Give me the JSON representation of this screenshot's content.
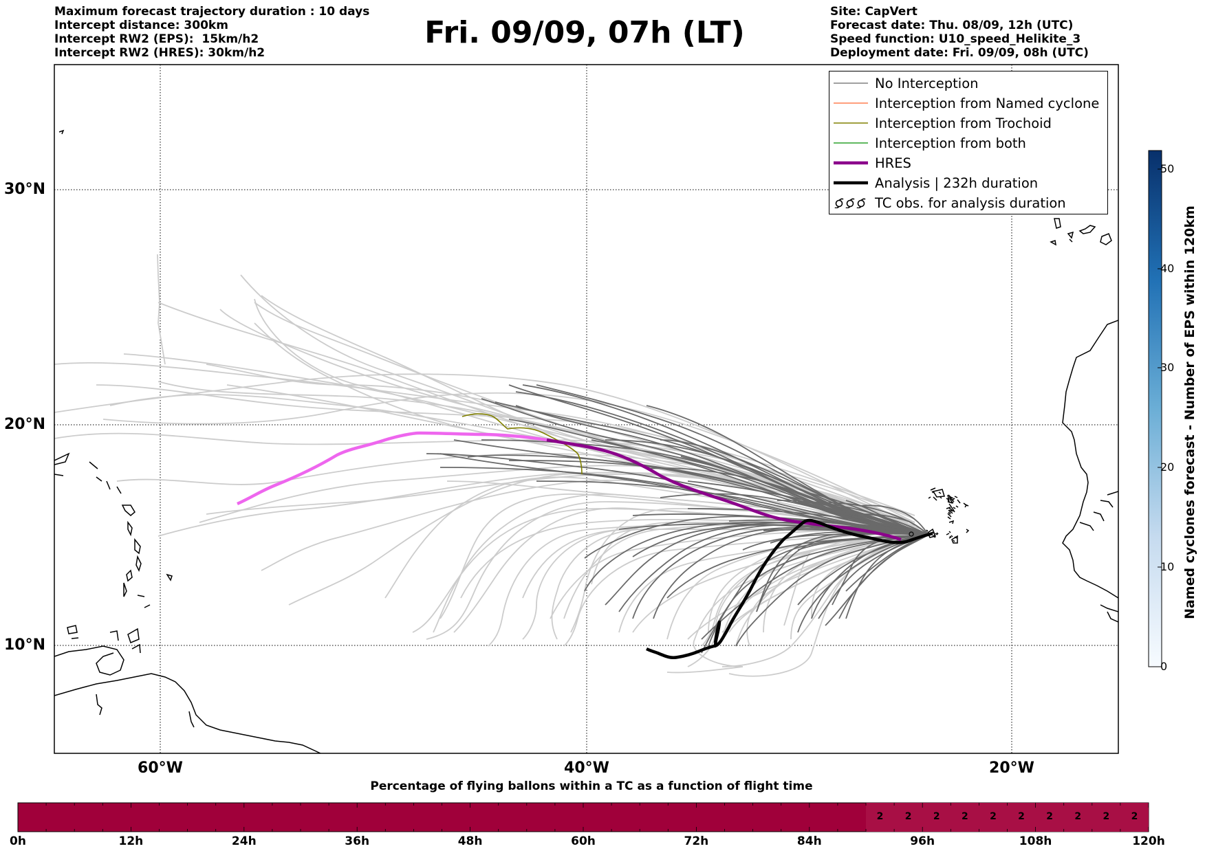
{
  "header": {
    "left_lines": [
      "Maximum forecast trajectory duration : 10 days",
      "Intercept distance: 300km",
      "Intercept RW2 (EPS):  15km/h2",
      "Intercept RW2 (HRES): 30km/h2"
    ],
    "title": "Fri. 09/09, 07h (LT)",
    "right_lines": [
      "Site: CapVert",
      "Forecast date: Thu. 08/09, 12h (UTC)",
      "Speed function: U10_speed_Helikite_3",
      "Deployment date: Fri. 09/09, 08h (UTC)"
    ]
  },
  "map": {
    "lat_labels": [
      "30°N",
      "20°N",
      "10°N"
    ],
    "lon_labels": [
      "60°W",
      "40°W",
      "20°W"
    ],
    "colors": {
      "no_interception": "#808080",
      "named_cyclone": "#ff7f50",
      "trochoid": "#808000",
      "both": "#2ca02c",
      "hres": "#8b008b",
      "hres_early": "#ee66ee",
      "analysis": "#000000",
      "light_track": "#cccccc",
      "dark_track": "#666666"
    }
  },
  "legend": {
    "items": [
      {
        "label": "No Interception",
        "color": "#808080",
        "style": "thin"
      },
      {
        "label": "Interception from Named cyclone",
        "color": "#ff7f50",
        "style": "thin"
      },
      {
        "label": "Interception from Trochoid",
        "color": "#808000",
        "style": "thin"
      },
      {
        "label": "Interception from both",
        "color": "#2ca02c",
        "style": "thin"
      },
      {
        "label": "HRES",
        "color": "#8b008b",
        "style": "thick"
      },
      {
        "label": "Analysis | 232h duration",
        "color": "#000000",
        "style": "thick"
      },
      {
        "label": "TC obs. for analysis duration",
        "color": "#000000",
        "style": "symbol"
      }
    ]
  },
  "colorbar": {
    "title": "Named cyclones forecast - Number of EPS within 120km",
    "ticks": [
      "50",
      "40",
      "30",
      "20",
      "10",
      "0"
    ],
    "color_top": "#08306b",
    "color_bottom": "#f7fbff"
  },
  "progress_bar": {
    "title": "Percentage of flying ballons within a TC as a function of flight time",
    "tick_labels": [
      "0h",
      "12h",
      "24h",
      "36h",
      "48h",
      "60h",
      "72h",
      "84h",
      "96h",
      "108h",
      "120h"
    ],
    "cell_values": [
      "2",
      "2",
      "2",
      "2",
      "2",
      "2",
      "2",
      "2",
      "2",
      "2"
    ],
    "fill_color": "#a0003a"
  }
}
